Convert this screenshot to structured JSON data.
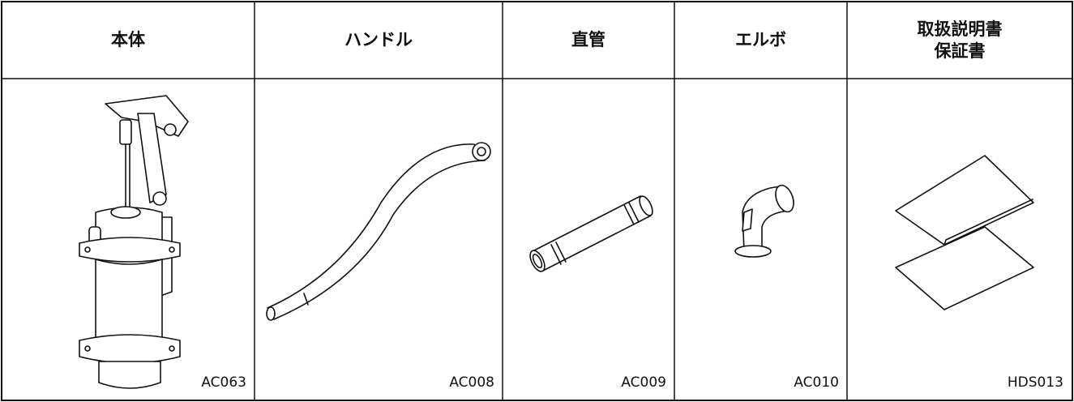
{
  "table": {
    "headers": [
      "本体",
      "ハンドル",
      "直管",
      "エルボ",
      [
        "取扱説明書",
        "保証書"
      ]
    ],
    "codes": [
      "AC063",
      "AC008",
      "AC009",
      "AC010",
      "HDS013"
    ]
  }
}
